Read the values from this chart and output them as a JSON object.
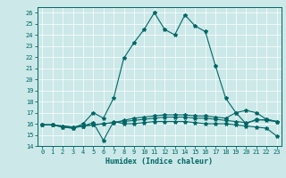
{
  "title": "",
  "xlabel": "Humidex (Indice chaleur)",
  "xlim": [
    -0.5,
    23.5
  ],
  "ylim": [
    14,
    26.5
  ],
  "yticks": [
    14,
    15,
    16,
    17,
    18,
    19,
    20,
    21,
    22,
    23,
    24,
    25,
    26
  ],
  "xticks": [
    0,
    1,
    2,
    3,
    4,
    5,
    6,
    7,
    8,
    9,
    10,
    11,
    12,
    13,
    14,
    15,
    16,
    17,
    18,
    19,
    20,
    21,
    22,
    23
  ],
  "bg_color": "#cce8e8",
  "grid_color": "#aacccc",
  "line_color": "#006666",
  "series": [
    [
      15.9,
      15.9,
      15.7,
      15.6,
      16.0,
      17.0,
      16.5,
      18.3,
      21.9,
      23.3,
      24.5,
      26.0,
      24.5,
      24.0,
      25.8,
      24.8,
      24.3,
      21.2,
      18.3,
      17.0,
      16.0,
      16.4,
      16.3,
      16.2
    ],
    [
      15.9,
      15.9,
      15.7,
      15.6,
      15.8,
      16.1,
      14.5,
      16.2,
      16.0,
      16.0,
      16.1,
      16.2,
      16.2,
      16.2,
      16.2,
      16.1,
      16.0,
      16.0,
      16.0,
      15.9,
      15.8,
      15.7,
      15.6,
      14.9
    ],
    [
      15.9,
      15.9,
      15.8,
      15.7,
      15.8,
      15.9,
      16.0,
      16.1,
      16.2,
      16.3,
      16.4,
      16.5,
      16.6,
      16.6,
      16.6,
      16.5,
      16.5,
      16.4,
      16.3,
      16.2,
      16.1,
      16.3,
      16.4,
      16.2
    ],
    [
      15.9,
      15.9,
      15.8,
      15.7,
      15.8,
      15.9,
      16.0,
      16.1,
      16.3,
      16.5,
      16.6,
      16.7,
      16.8,
      16.8,
      16.8,
      16.7,
      16.7,
      16.6,
      16.5,
      17.0,
      17.2,
      17.0,
      16.4,
      16.2
    ]
  ]
}
